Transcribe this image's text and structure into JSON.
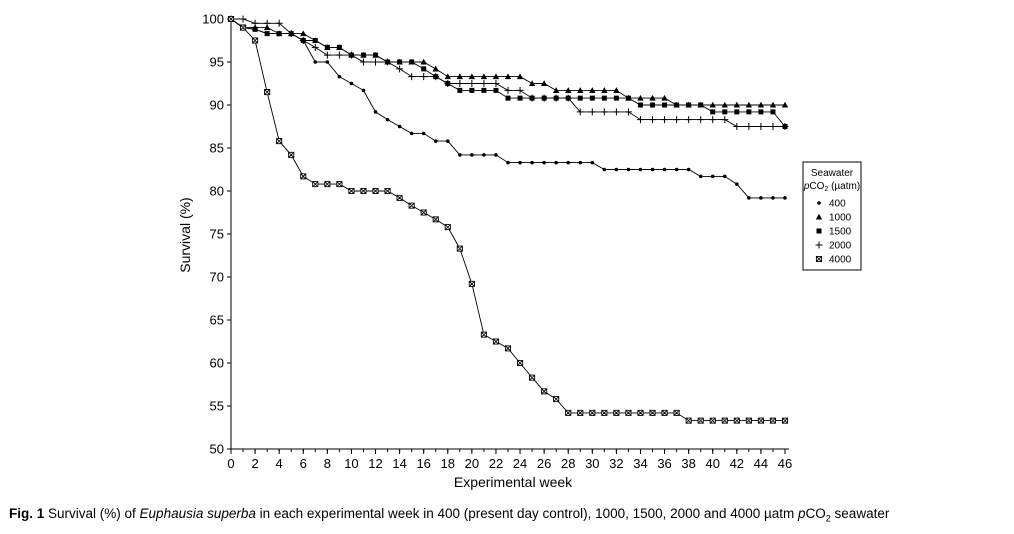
{
  "chart_data": {
    "type": "line",
    "xlabel": "Experimental week",
    "ylabel": "Survival (%)",
    "xlim": [
      0,
      46
    ],
    "ylim": [
      50,
      100
    ],
    "x_ticks": [
      "0",
      "2",
      "4",
      "6",
      "8",
      "10",
      "12",
      "14",
      "16",
      "18",
      "20",
      "22",
      "24",
      "26",
      "28",
      "30",
      "32",
      "34",
      "36",
      "38",
      "40",
      "42",
      "44",
      "46"
    ],
    "y_ticks": [
      "50",
      "55",
      "60",
      "65",
      "70",
      "75",
      "80",
      "85",
      "90",
      "95",
      "100"
    ],
    "legend": {
      "title_line1": "Seawater",
      "title_line2_italic": "p",
      "title_line2_rest": "CO",
      "title_line2_sub": "2",
      "title_line2_unit": " (µatm)",
      "placement": "right"
    },
    "series": [
      {
        "name": "400",
        "marker": "circle",
        "x": [
          0,
          1,
          2,
          3,
          4,
          5,
          6,
          7,
          8,
          9,
          10,
          11,
          12,
          13,
          14,
          15,
          16,
          17,
          18,
          19,
          20,
          21,
          22,
          23,
          24,
          25,
          26,
          27,
          28,
          29,
          30,
          31,
          32,
          33,
          34,
          35,
          36,
          37,
          38,
          39,
          40,
          41,
          42,
          43,
          44,
          45,
          46
        ],
        "y": [
          100,
          99,
          98.8,
          98.3,
          98.3,
          98.3,
          97.5,
          95,
          95,
          93.3,
          92.5,
          91.7,
          89.2,
          88.3,
          87.5,
          86.7,
          86.7,
          85.8,
          85.8,
          84.2,
          84.2,
          84.2,
          84.2,
          83.3,
          83.3,
          83.3,
          83.3,
          83.3,
          83.3,
          83.3,
          83.3,
          82.5,
          82.5,
          82.5,
          82.5,
          82.5,
          82.5,
          82.5,
          82.5,
          81.7,
          81.7,
          81.7,
          80.8,
          79.2,
          79.2,
          79.2,
          79.2
        ]
      },
      {
        "name": "1000",
        "marker": "triangle",
        "x": [
          0,
          1,
          2,
          3,
          4,
          5,
          6,
          7,
          8,
          9,
          10,
          11,
          12,
          13,
          14,
          15,
          16,
          17,
          18,
          19,
          20,
          21,
          22,
          23,
          24,
          25,
          26,
          27,
          28,
          29,
          30,
          31,
          32,
          33,
          34,
          35,
          36,
          37,
          38,
          39,
          40,
          41,
          42,
          43,
          44,
          45,
          46
        ],
        "y": [
          100,
          99,
          99,
          99,
          98.3,
          98.3,
          98.3,
          97.5,
          96.7,
          96.7,
          95.8,
          95.8,
          95.8,
          95,
          95,
          95,
          95,
          94.2,
          93.3,
          93.3,
          93.3,
          93.3,
          93.3,
          93.3,
          93.3,
          92.5,
          92.5,
          91.7,
          91.7,
          91.7,
          91.7,
          91.7,
          91.7,
          90.8,
          90.8,
          90.8,
          90.8,
          90,
          90,
          90,
          90,
          90,
          90,
          90,
          90,
          90,
          90
        ]
      },
      {
        "name": "1500",
        "marker": "square",
        "x": [
          0,
          1,
          2,
          3,
          4,
          5,
          6,
          7,
          8,
          9,
          10,
          11,
          12,
          13,
          14,
          15,
          16,
          17,
          18,
          19,
          20,
          21,
          22,
          23,
          24,
          25,
          26,
          27,
          28,
          29,
          30,
          31,
          32,
          33,
          34,
          35,
          36,
          37,
          38,
          39,
          40,
          41,
          42,
          43,
          44,
          45,
          46
        ],
        "y": [
          100,
          99,
          98.8,
          98.3,
          98.3,
          98.3,
          97.5,
          97.5,
          96.7,
          96.7,
          95.8,
          95.8,
          95.8,
          95,
          95,
          95,
          94.2,
          93.3,
          92.5,
          91.7,
          91.7,
          91.7,
          91.7,
          90.8,
          90.8,
          90.8,
          90.8,
          90.8,
          90.8,
          90.8,
          90.8,
          90.8,
          90.8,
          90.8,
          90,
          90,
          90,
          90,
          90,
          90,
          89.2,
          89.2,
          89.2,
          89.2,
          89.2,
          89.2,
          87.5
        ]
      },
      {
        "name": "2000",
        "marker": "plus",
        "x": [
          0,
          1,
          2,
          3,
          4,
          5,
          6,
          7,
          8,
          9,
          10,
          11,
          12,
          13,
          14,
          15,
          16,
          17,
          18,
          19,
          20,
          21,
          22,
          23,
          24,
          25,
          26,
          27,
          28,
          29,
          30,
          31,
          32,
          33,
          34,
          35,
          36,
          37,
          38,
          39,
          40,
          41,
          42,
          43,
          44,
          45,
          46
        ],
        "y": [
          100,
          100,
          99.5,
          99.5,
          99.5,
          98.3,
          97.5,
          96.7,
          95.8,
          95.8,
          95.8,
          95,
          95,
          95,
          94.2,
          93.3,
          93.3,
          93.3,
          92.5,
          92.5,
          92.5,
          92.5,
          92.5,
          91.7,
          91.7,
          90.8,
          90.8,
          90.8,
          90.8,
          89.2,
          89.2,
          89.2,
          89.2,
          89.2,
          88.3,
          88.3,
          88.3,
          88.3,
          88.3,
          88.3,
          88.3,
          88.3,
          87.5,
          87.5,
          87.5,
          87.5,
          87.5
        ]
      },
      {
        "name": "4000",
        "marker": "boxcross",
        "x": [
          0,
          1,
          2,
          3,
          4,
          5,
          6,
          7,
          8,
          9,
          10,
          11,
          12,
          13,
          14,
          15,
          16,
          17,
          18,
          19,
          20,
          21,
          22,
          23,
          24,
          25,
          26,
          27,
          28,
          29,
          30,
          31,
          32,
          33,
          34,
          35,
          36,
          37,
          38,
          39,
          40,
          41,
          42,
          43,
          44,
          45,
          46
        ],
        "y": [
          100,
          99,
          97.5,
          91.5,
          85.8,
          84.2,
          81.7,
          80.8,
          80.8,
          80.8,
          80,
          80,
          80,
          80,
          79.2,
          78.3,
          77.5,
          76.7,
          75.8,
          73.3,
          69.2,
          63.3,
          62.5,
          61.7,
          60,
          58.3,
          56.7,
          55.8,
          54.2,
          54.2,
          54.2,
          54.2,
          54.2,
          54.2,
          54.2,
          54.2,
          54.2,
          54.2,
          53.3,
          53.3,
          53.3,
          53.3,
          53.3,
          53.3,
          53.3,
          53.3,
          53.3
        ]
      }
    ]
  },
  "caption": {
    "fig_label": "Fig. 1",
    "text_before_species": " Survival (%) of ",
    "species": "Euphausia superba",
    "text_after_species": " in each experimental week in 400 (present day control), 1000, 1500, 2000 and 4000 µatm ",
    "pco2_italic": "p",
    "pco2_rest": "CO",
    "pco2_sub": "2",
    "text_end": " seawater"
  }
}
